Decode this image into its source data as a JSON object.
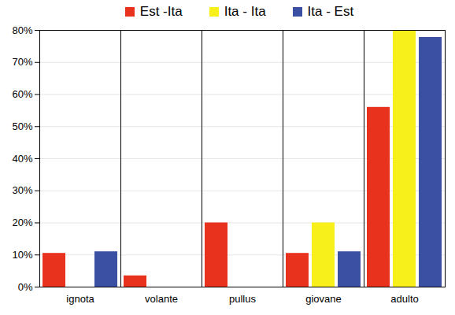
{
  "chart_data": {
    "type": "bar",
    "categories": [
      "ignota",
      "volante",
      "pullus",
      "giovane",
      "adulto"
    ],
    "series": [
      {
        "name": "Est -Ita",
        "color": "#e8321e",
        "values": [
          10.5,
          3.5,
          20,
          10.5,
          56
        ]
      },
      {
        "name": "Ita - Ita",
        "color": "#f7f01a",
        "values": [
          0,
          0,
          0,
          20,
          80
        ]
      },
      {
        "name": "Ita - Est",
        "color": "#3b50a3",
        "values": [
          11,
          0,
          0,
          11,
          77.8
        ]
      }
    ],
    "ylim": [
      0,
      80
    ],
    "yticks": [
      {
        "value": 0,
        "label": "0%"
      },
      {
        "value": 10,
        "label": "10%"
      },
      {
        "value": 20,
        "label": "20%"
      },
      {
        "value": 30,
        "label": "30%"
      },
      {
        "value": 40,
        "label": "40%"
      },
      {
        "value": 50,
        "label": "50%"
      },
      {
        "value": 60,
        "label": "60%"
      },
      {
        "value": 70,
        "label": "70%"
      },
      {
        "value": 80,
        "label": "80%"
      }
    ],
    "grid": true,
    "legend": "top"
  }
}
